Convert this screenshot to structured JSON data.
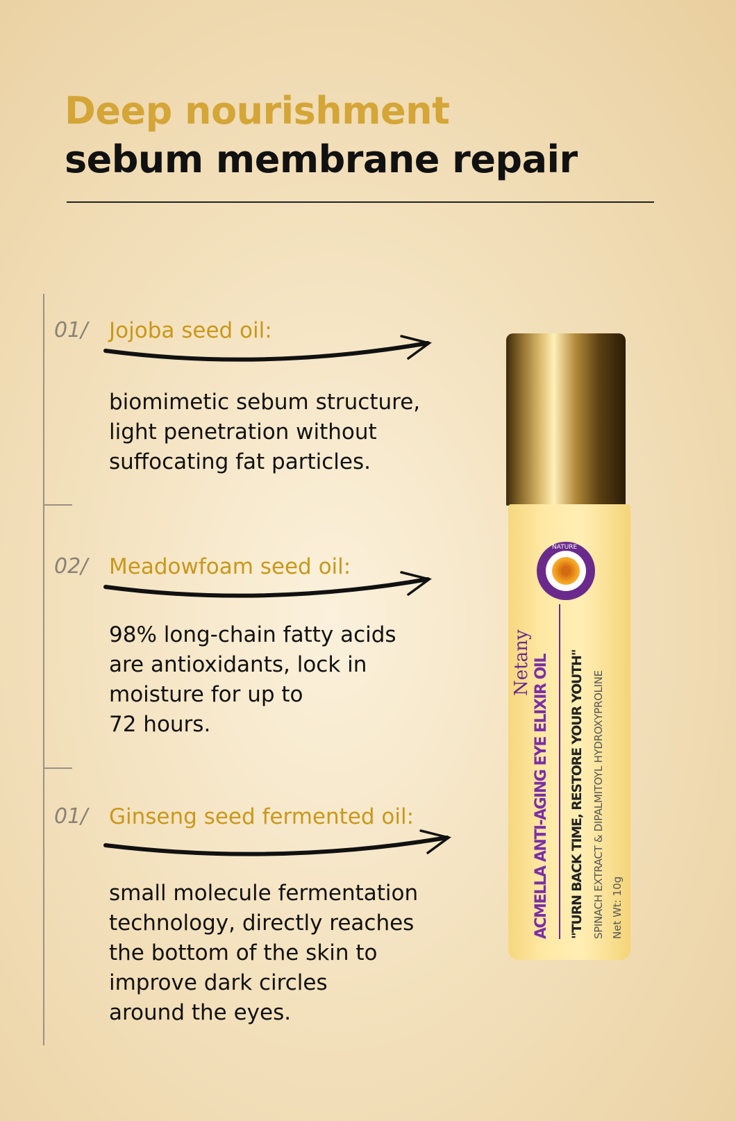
{
  "header": {
    "title_line1": "Deep nourishment",
    "title_line2": "sebum membrane repair"
  },
  "items": [
    {
      "number": "01/",
      "label": "Jojoba seed oil:",
      "description": [
        "biomimetic sebum structure,",
        "light penetration without",
        "suffocating fat particles."
      ]
    },
    {
      "number": "02/",
      "label": "Meadowfoam seed oil:",
      "description": [
        "98% long-chain fatty acids",
        "are antioxidants, lock in",
        "moisture for up to",
        "72 hours."
      ]
    },
    {
      "number": "01/",
      "label": "Ginseng seed fermented oil:",
      "description": [
        "small molecule fermentation",
        "technology, directly reaches",
        "the bottom of the skin to",
        "improve dark circles",
        "around the eyes."
      ]
    }
  ],
  "product": {
    "seal_text": "NATURE",
    "brand": "Netany",
    "name": "ACMELLA ANTI-AGING EYE ELIXIR OIL",
    "slogan": "\"TURN BACK TIME, RESTORE YOUR YOUTH\"",
    "ingredients": "SPINACH EXTRACT & DIPALMITOYL HYDROXYPROLINE",
    "net_weight": "Net Wt:  10g"
  },
  "colors": {
    "accent": "#d4a537",
    "label": "#c9971a",
    "brand_purple": "#6a2a8c"
  }
}
